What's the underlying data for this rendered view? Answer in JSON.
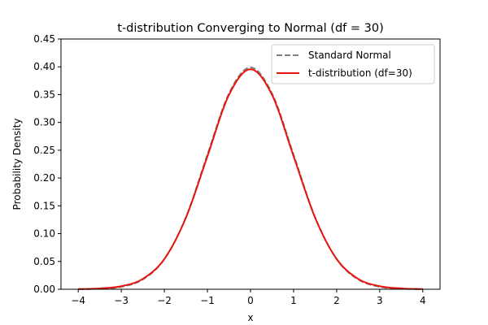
{
  "chart_data": {
    "type": "line",
    "title": "t-distribution Converging to Normal (df = 30)",
    "xlabel": "x",
    "ylabel": "Probability Density",
    "xlim": [
      -4.4,
      4.4
    ],
    "ylim": [
      0,
      0.45
    ],
    "xticks": [
      -4,
      -3,
      -2,
      -1,
      0,
      1,
      2,
      3,
      4
    ],
    "xtick_labels": [
      "−4",
      "−3",
      "−2",
      "−1",
      "0",
      "1",
      "2",
      "3",
      "4"
    ],
    "yticks": [
      0.0,
      0.05,
      0.1,
      0.15,
      0.2,
      0.25,
      0.3,
      0.35,
      0.4,
      0.45
    ],
    "ytick_labels": [
      "0.00",
      "0.05",
      "0.10",
      "0.15",
      "0.20",
      "0.25",
      "0.30",
      "0.35",
      "0.40",
      "0.45"
    ],
    "grid": false,
    "legend_position": "upper right",
    "x": [
      -4.0,
      -3.5,
      -3.0,
      -2.5,
      -2.0,
      -1.5,
      -1.0,
      -0.5,
      0.0,
      0.5,
      1.0,
      1.5,
      2.0,
      2.5,
      3.0,
      3.5,
      4.0
    ],
    "series": [
      {
        "name": "Standard Normal",
        "color": "#808080",
        "style": "dashed",
        "values": [
          0.0001,
          0.0009,
          0.0044,
          0.0175,
          0.054,
          0.1295,
          0.242,
          0.3521,
          0.3989,
          0.3521,
          0.242,
          0.1295,
          0.054,
          0.0175,
          0.0044,
          0.0009,
          0.0001
        ]
      },
      {
        "name": "t-distribution (df=30)",
        "color": "#e8140c",
        "style": "solid",
        "values": [
          0.0003,
          0.0015,
          0.0055,
          0.0187,
          0.0545,
          0.1286,
          0.2392,
          0.3494,
          0.3956,
          0.3494,
          0.2392,
          0.1286,
          0.0545,
          0.0187,
          0.0055,
          0.0015,
          0.0003
        ]
      }
    ]
  }
}
